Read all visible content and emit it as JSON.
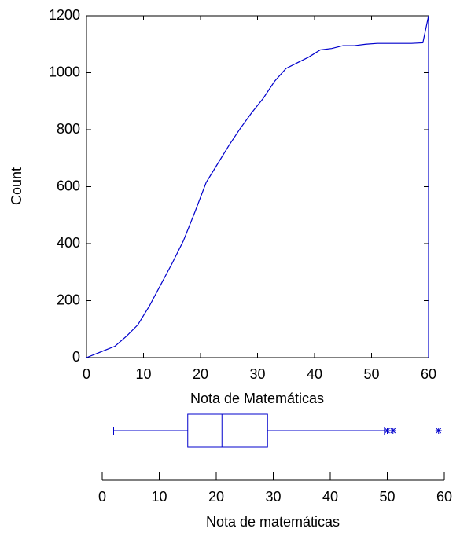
{
  "chart_data": [
    {
      "type": "line",
      "xlabel": "Nota de Matemáticas",
      "ylabel": "Count",
      "color": "#0000cc",
      "x": [
        0,
        5,
        7,
        9,
        11,
        13,
        15,
        17,
        19,
        21,
        23,
        25,
        27,
        29,
        31,
        33,
        35,
        37,
        39,
        41,
        43,
        45,
        47,
        49,
        51,
        53,
        55,
        57,
        59,
        60,
        60
      ],
      "values": [
        0,
        40,
        75,
        115,
        180,
        255,
        330,
        410,
        510,
        615,
        680,
        745,
        805,
        860,
        910,
        970,
        1015,
        1035,
        1055,
        1080,
        1085,
        1095,
        1095,
        1100,
        1103,
        1103,
        1103,
        1103,
        1105,
        1200,
        0
      ],
      "xlim": [
        0,
        60
      ],
      "ylim": [
        0,
        1200
      ],
      "xticks": [
        0,
        10,
        20,
        30,
        40,
        50,
        60
      ],
      "yticks": [
        0,
        200,
        400,
        600,
        800,
        1000,
        1200
      ]
    },
    {
      "type": "box",
      "xlabel": "Nota de matemáticas",
      "color": "#0000cc",
      "min": 2,
      "q1": 15,
      "median": 21,
      "q3": 29,
      "max": 49.5,
      "outliers": [
        50,
        51,
        59
      ],
      "xlim": [
        0,
        60
      ],
      "xticks": [
        0,
        10,
        20,
        30,
        40,
        50,
        60
      ]
    }
  ]
}
